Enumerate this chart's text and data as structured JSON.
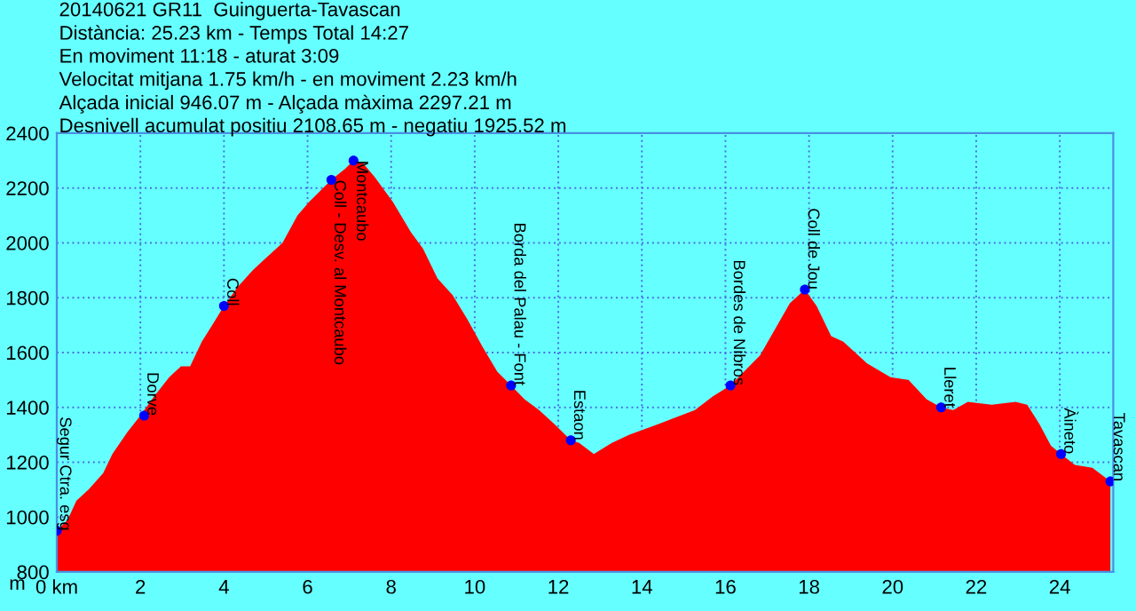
{
  "chart_data": {
    "type": "area",
    "title": "20140621 GR11  Guinguerta-Tavascan",
    "annotations": [
      "Distància: 25.23 km - Temps Total 14:27",
      "En moviment 11:18 - aturat 3:09",
      "Velocitat mitjana 1.75 km/h - en moviment 2.23 km/h",
      "Alçada inicial 946.07 m - Alçada màxima 2297.21 m",
      "Desnivell acumulat positiu 2108.65 m - negatiu 1925.52 m",
      {
        "text": "Segur Ctra. esg",
        "x": 0,
        "y": 950
      },
      {
        "text": "Dorve",
        "x": 2.09,
        "y": 1370
      },
      {
        "text": "Coll",
        "x": 4.0,
        "y": 1770
      },
      {
        "text": "Coll - Desv. al Montcaubo",
        "x": 6.57,
        "y": 2230
      },
      {
        "text": "Montcaubo",
        "x": 7.1,
        "y": 2300
      },
      {
        "text": "Borda del Palau - Font",
        "x": 10.87,
        "y": 1480
      },
      {
        "text": "Estaon",
        "x": 12.3,
        "y": 1280
      },
      {
        "text": "Bordes de Nibros",
        "x": 16.12,
        "y": 1480
      },
      {
        "text": "Coll de Jou",
        "x": 17.9,
        "y": 1830
      },
      {
        "text": "Lleret",
        "x": 21.16,
        "y": 1400
      },
      {
        "text": "Àineto",
        "x": 24.03,
        "y": 1230
      },
      {
        "text": "Tavascan",
        "x": 25.21,
        "y": 1130
      }
    ],
    "ylabel": "m",
    "series": [
      {
        "color": "#ff0000",
        "x": [
          0,
          0.26,
          0.47,
          0.76,
          1.11,
          1.33,
          1.69,
          2.0,
          2.33,
          2.69,
          2.97,
          3.19,
          3.47,
          3.76,
          4.0,
          4.33,
          4.69,
          4.97,
          5.4,
          5.76,
          6.04,
          6.57,
          6.9,
          7.1,
          7.33,
          7.61,
          8.04,
          8.47,
          8.76,
          9.11,
          9.47,
          9.83,
          10.19,
          10.54,
          10.87,
          11.19,
          11.54,
          11.9,
          12.3,
          12.5,
          12.85,
          13.28,
          13.7,
          14.41,
          15.27,
          15.7,
          16.12,
          16.83,
          17.54,
          17.9,
          18.18,
          18.53,
          18.82,
          19.39,
          19.95,
          20.38,
          20.81,
          21.16,
          21.45,
          21.8,
          22.37,
          22.94,
          23.22,
          23.51,
          23.79,
          24.03,
          24.36,
          24.78,
          25.21
        ],
        "values": [
          950,
          990,
          1060,
          1100,
          1160,
          1230,
          1310,
          1370,
          1440,
          1510,
          1550,
          1550,
          1640,
          1710,
          1770,
          1840,
          1900,
          1940,
          2000,
          2100,
          2150,
          2230,
          2270,
          2300,
          2290,
          2240,
          2150,
          2040,
          1980,
          1870,
          1810,
          1720,
          1620,
          1530,
          1480,
          1430,
          1390,
          1340,
          1280,
          1270,
          1230,
          1270,
          1300,
          1340,
          1390,
          1440,
          1480,
          1590,
          1780,
          1830,
          1770,
          1660,
          1640,
          1560,
          1510,
          1500,
          1430,
          1400,
          1390,
          1420,
          1410,
          1420,
          1410,
          1340,
          1260,
          1230,
          1190,
          1180,
          1130
        ]
      },
      {
        "type": "scatter",
        "color": "#0000ff",
        "marker": "circle",
        "x": [
          0,
          2.09,
          4.0,
          6.57,
          7.1,
          10.87,
          12.3,
          16.12,
          17.9,
          21.16,
          24.03,
          25.21
        ],
        "values": [
          950,
          1370,
          1770,
          2230,
          2300,
          1480,
          1280,
          1480,
          1830,
          1400,
          1230,
          1130
        ]
      }
    ],
    "xlim": [
      0,
      25.28
    ],
    "ylim": [
      800,
      2400
    ],
    "xticks": [
      {
        "value": 0,
        "label": "0 km"
      },
      2,
      4,
      6,
      8,
      10,
      12,
      14,
      16,
      18,
      20,
      22,
      24
    ],
    "yticks": [
      800,
      1000,
      1200,
      1400,
      1600,
      1800,
      2000,
      2200,
      2400
    ],
    "grid": true
  }
}
